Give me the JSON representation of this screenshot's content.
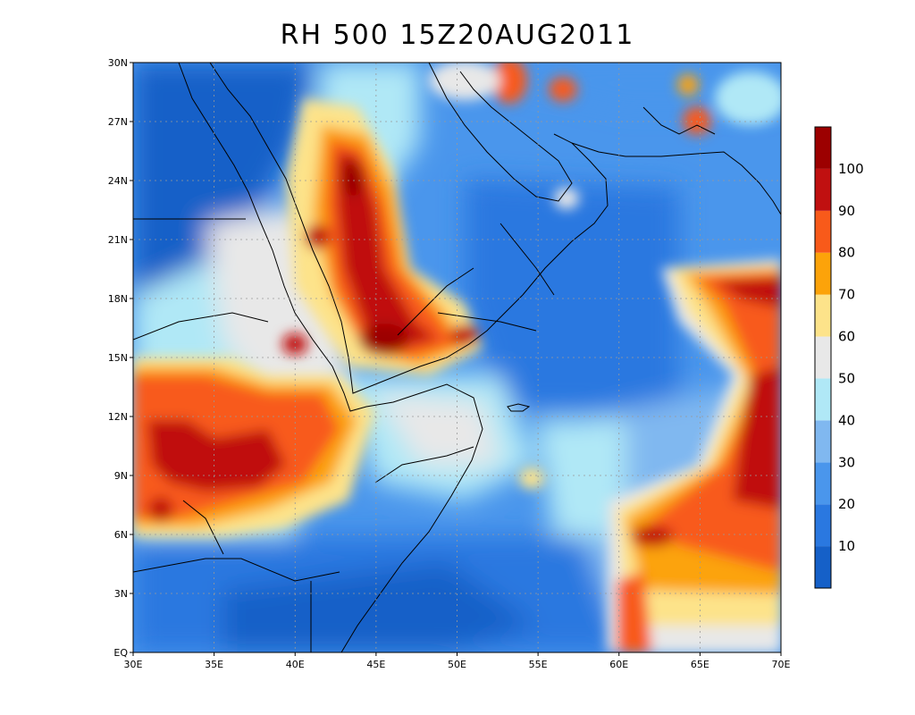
{
  "title": "RH 500 15Z20AUG2011",
  "map": {
    "lon_labels": [
      "30E",
      "35E",
      "40E",
      "45E",
      "50E",
      "55E",
      "60E",
      "65E",
      "70E"
    ],
    "lat_labels": [
      "EQ",
      "3N",
      "6N",
      "9N",
      "12N",
      "15N",
      "18N",
      "21N",
      "24N",
      "27N",
      "30N"
    ],
    "lon_range": [
      30,
      70
    ],
    "lat_range": [
      0,
      30
    ],
    "gridlines": "dotted"
  },
  "colorbar": {
    "labels": [
      "10",
      "20",
      "30",
      "40",
      "50",
      "60",
      "70",
      "80",
      "90",
      "100"
    ],
    "colors": [
      "#1560c8",
      "#2a78e0",
      "#4a96ec",
      "#80b8f0",
      "#b0e8f6",
      "#e8e8e8",
      "#fde38a",
      "#fca30a",
      "#f85a1a",
      "#c01010",
      "#9c0000"
    ]
  }
}
